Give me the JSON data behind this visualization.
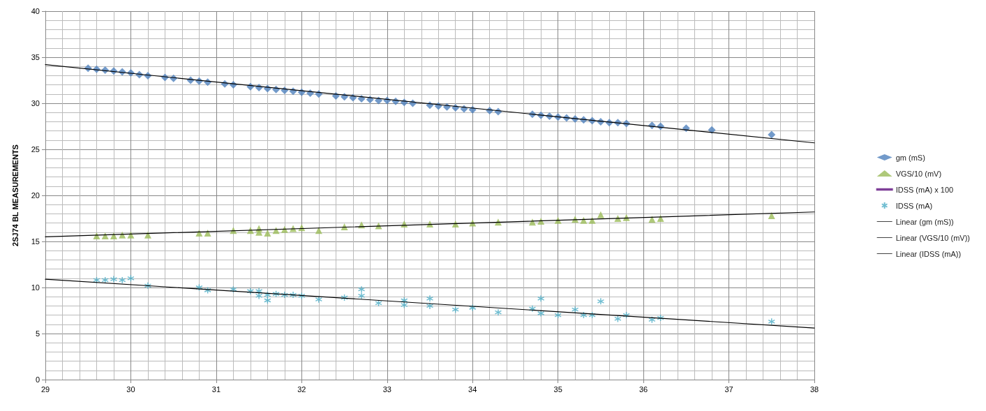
{
  "chart_data": {
    "type": "scatter",
    "ylabel": "2SJ74 BL MEASUREMENTS",
    "xlim": [
      29,
      38
    ],
    "xticks": [
      29,
      30,
      31,
      32,
      33,
      34,
      35,
      36,
      37,
      38
    ],
    "ylim": [
      0,
      40
    ],
    "yticks": [
      0,
      5,
      10,
      15,
      20,
      25,
      30,
      35,
      40
    ],
    "grid": true,
    "legend": "right",
    "series": [
      {
        "name": "gm (mS)",
        "color": "#4f81bd",
        "marker": "diamond",
        "x": [
          29.5,
          29.6,
          29.7,
          29.8,
          29.9,
          30.0,
          30.1,
          30.2,
          30.4,
          30.5,
          30.7,
          30.8,
          30.9,
          31.1,
          31.2,
          31.4,
          31.5,
          31.6,
          31.7,
          31.8,
          31.9,
          32.0,
          32.1,
          32.2,
          32.4,
          32.5,
          32.6,
          32.7,
          32.8,
          32.9,
          33.0,
          33.1,
          33.2,
          33.3,
          33.5,
          33.6,
          33.7,
          33.8,
          33.9,
          34.0,
          34.2,
          34.3,
          34.7,
          34.8,
          34.9,
          35.0,
          35.1,
          35.2,
          35.3,
          35.4,
          35.5,
          35.6,
          35.7,
          35.8,
          36.1,
          36.2,
          36.5,
          36.8,
          37.5
        ],
        "values": [
          33.8,
          33.7,
          33.6,
          33.5,
          33.4,
          33.3,
          33.1,
          33.0,
          32.8,
          32.7,
          32.5,
          32.4,
          32.3,
          32.1,
          32.0,
          31.8,
          31.7,
          31.6,
          31.5,
          31.4,
          31.3,
          31.2,
          31.1,
          31.0,
          30.8,
          30.7,
          30.6,
          30.5,
          30.4,
          30.3,
          30.3,
          30.2,
          30.1,
          30.0,
          29.8,
          29.7,
          29.6,
          29.5,
          29.4,
          29.3,
          29.2,
          29.1,
          28.8,
          28.7,
          28.6,
          28.5,
          28.4,
          28.3,
          28.2,
          28.1,
          28.0,
          27.9,
          27.9,
          27.8,
          27.6,
          27.5,
          27.3,
          27.1,
          26.6
        ]
      },
      {
        "name": "VGS/10 (mV)",
        "color": "#9bbb59",
        "marker": "triangle",
        "x": [
          29.6,
          29.7,
          29.8,
          29.9,
          30.0,
          30.2,
          30.8,
          30.9,
          31.2,
          31.4,
          31.5,
          31.5,
          31.6,
          31.7,
          31.8,
          31.9,
          32.0,
          32.2,
          32.5,
          32.7,
          32.9,
          33.2,
          33.5,
          33.8,
          34.0,
          34.3,
          34.7,
          34.8,
          35.0,
          35.2,
          35.3,
          35.4,
          35.5,
          35.7,
          35.8,
          36.1,
          36.2,
          37.5
        ],
        "values": [
          15.6,
          15.6,
          15.6,
          15.7,
          15.7,
          15.7,
          15.9,
          15.9,
          16.2,
          16.2,
          16.4,
          16.0,
          15.9,
          16.2,
          16.3,
          16.4,
          16.5,
          16.2,
          16.6,
          16.8,
          16.7,
          16.9,
          16.9,
          16.9,
          17.0,
          17.1,
          17.1,
          17.2,
          17.3,
          17.4,
          17.3,
          17.3,
          17.9,
          17.5,
          17.6,
          17.4,
          17.5,
          17.8
        ]
      },
      {
        "name": "IDSS (mA) x 100",
        "type": "line",
        "color": "#7f3f98",
        "marker": "cross"
      },
      {
        "name": "IDSS (mA)",
        "color": "#4bacc6",
        "marker": "cross",
        "x": [
          29.6,
          29.7,
          29.8,
          29.9,
          30.0,
          30.2,
          30.8,
          30.9,
          31.2,
          31.4,
          31.5,
          31.5,
          31.6,
          31.6,
          31.7,
          31.8,
          31.9,
          32.0,
          32.2,
          32.5,
          32.7,
          32.7,
          32.9,
          33.2,
          33.2,
          33.5,
          33.5,
          33.8,
          34.0,
          34.3,
          34.7,
          34.8,
          34.8,
          35.0,
          35.2,
          35.3,
          35.4,
          35.5,
          35.7,
          35.8,
          36.1,
          36.2,
          37.5
        ],
        "values": [
          10.8,
          10.8,
          10.9,
          10.8,
          11.0,
          10.2,
          10.0,
          9.7,
          9.8,
          9.6,
          9.6,
          9.1,
          8.6,
          9.2,
          9.3,
          9.2,
          9.2,
          9.1,
          8.7,
          8.9,
          9.8,
          9.1,
          8.3,
          8.6,
          8.1,
          8.8,
          8.0,
          7.6,
          7.8,
          7.3,
          7.7,
          8.8,
          7.2,
          7.0,
          7.6,
          7.0,
          7.0,
          8.5,
          6.6,
          7.0,
          6.5,
          6.7,
          6.3
        ]
      },
      {
        "name": "Linear (gm (mS))",
        "type": "line",
        "color": "#000000",
        "marker": "none",
        "x": [
          29,
          38
        ],
        "values": [
          34.2,
          25.7
        ]
      },
      {
        "name": "Linear (VGS/10 (mV))",
        "type": "line",
        "color": "#000000",
        "marker": "none",
        "x": [
          29,
          38
        ],
        "values": [
          15.5,
          18.2
        ]
      },
      {
        "name": "Linear (IDSS (mA))",
        "type": "line",
        "color": "#000000",
        "marker": "none",
        "x": [
          29,
          38
        ],
        "values": [
          10.9,
          5.6
        ]
      }
    ]
  }
}
